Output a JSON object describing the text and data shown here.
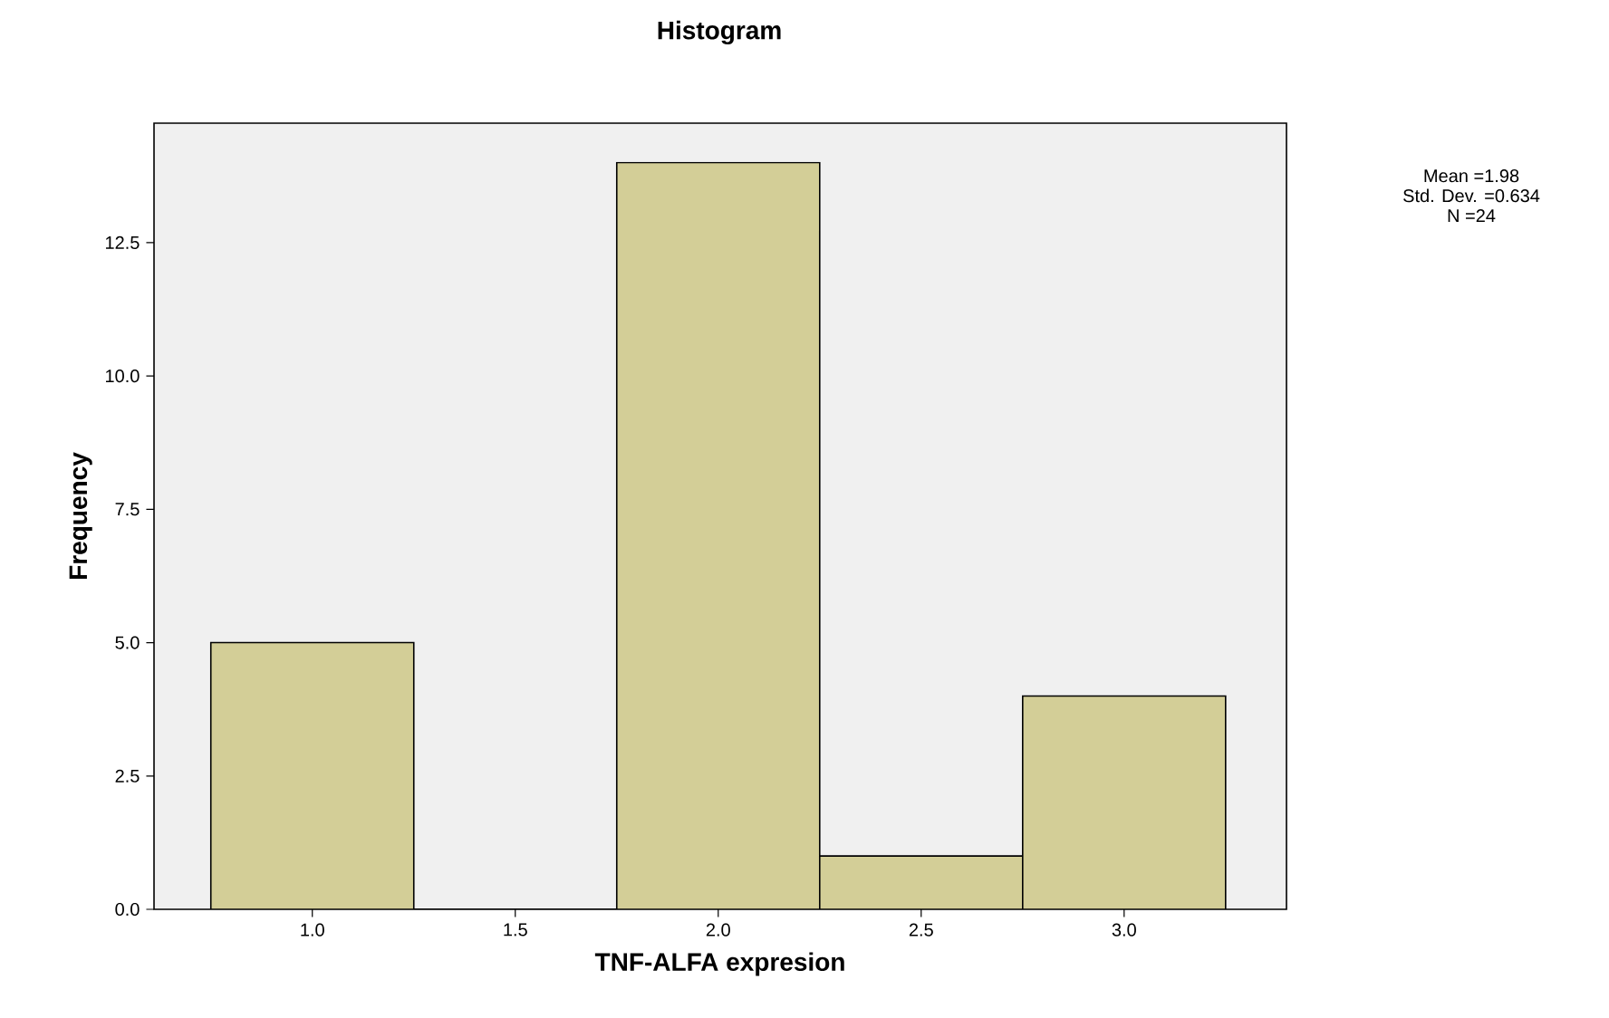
{
  "chart_data": {
    "type": "histogram",
    "title": "Histogram",
    "xlabel": "TNF-ALFA expresion",
    "ylabel": "Frequency",
    "bins": [
      0.75,
      1.25,
      1.75,
      2.25,
      2.75,
      3.25
    ],
    "values": [
      5,
      0,
      14,
      1,
      4
    ],
    "color": "#d3ce97",
    "xlim": [
      0.61,
      3.4
    ],
    "ylim": [
      0,
      14.74
    ],
    "xticks": [
      {
        "value": 1.0,
        "label": "1.0"
      },
      {
        "value": 1.5,
        "label": "1.5"
      },
      {
        "value": 2.0,
        "label": "2.0"
      },
      {
        "value": 2.5,
        "label": "2.5"
      },
      {
        "value": 3.0,
        "label": "3.0"
      }
    ],
    "yticks": [
      {
        "value": 0,
        "label": "0.0"
      },
      {
        "value": 2.5,
        "label": "2.5"
      },
      {
        "value": 5,
        "label": "5.0"
      },
      {
        "value": 7.5,
        "label": "7.5"
      },
      {
        "value": 10,
        "label": "10.0"
      },
      {
        "value": 12.5,
        "label": "12.5"
      }
    ],
    "annotations": [
      "Mean =1.98",
      "Std. Dev. =0.634",
      "N =24"
    ],
    "grid": false
  }
}
